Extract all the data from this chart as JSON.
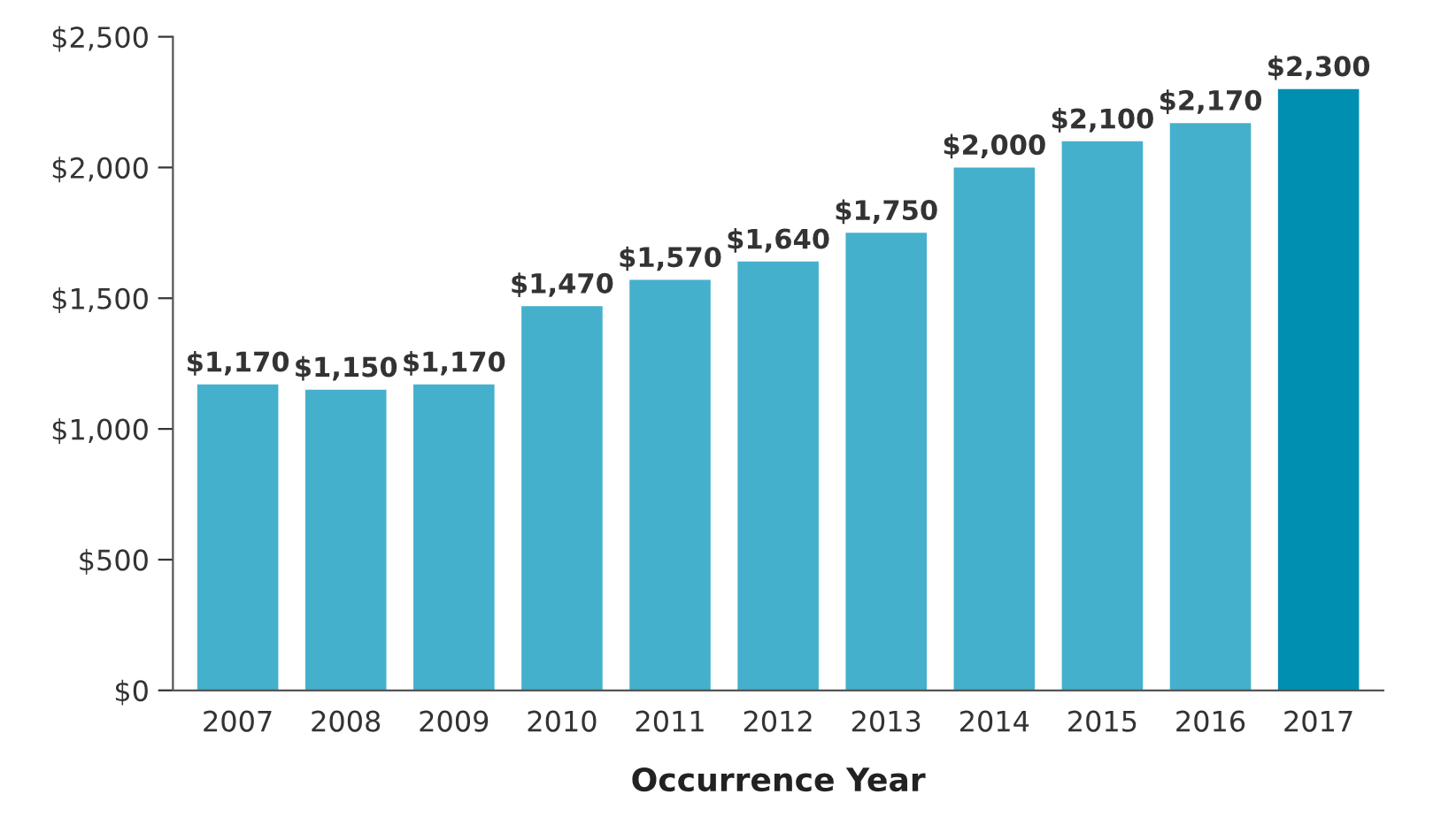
{
  "chart_data": {
    "type": "bar",
    "xlabel": "Occurrence Year",
    "categories": [
      "2007",
      "2008",
      "2009",
      "2010",
      "2011",
      "2012",
      "2013",
      "2014",
      "2015",
      "2016",
      "2017"
    ],
    "values": [
      1170,
      1150,
      1170,
      1470,
      1570,
      1640,
      1750,
      2000,
      2100,
      2170,
      2300
    ],
    "colors": [
      "#45b0cc",
      "#45b0cc",
      "#45b0cc",
      "#45b0cc",
      "#45b0cc",
      "#45b0cc",
      "#45b0cc",
      "#45b0cc",
      "#45b0cc",
      "#45b0cc",
      "#008fb0"
    ],
    "value_labels": [
      "$1,170",
      "$1,150",
      "$1,170",
      "$1,470",
      "$1,570",
      "$1,640",
      "$1,750",
      "$2,000",
      "$2,100",
      "$2,170",
      "$2,300"
    ],
    "ylim": [
      0,
      2500
    ],
    "yticks": [
      {
        "value": 0,
        "label": "$0"
      },
      {
        "value": 500,
        "label": "$500"
      },
      {
        "value": 1000,
        "label": "$1,000"
      },
      {
        "value": 1500,
        "label": "$1,500"
      },
      {
        "value": 2000,
        "label": "$2,000"
      },
      {
        "value": 2500,
        "label": "$2,500"
      }
    ],
    "grid": false,
    "legend": false
  }
}
